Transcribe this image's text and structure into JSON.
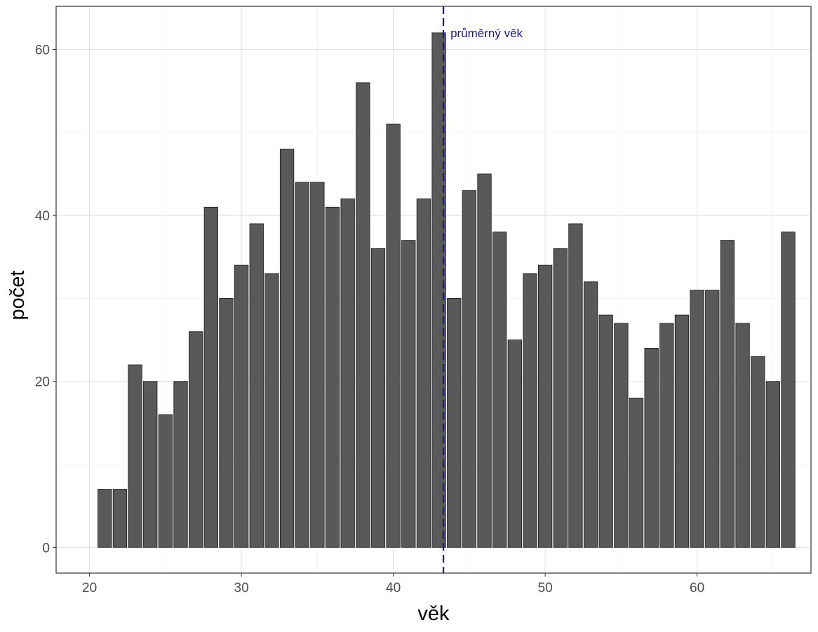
{
  "chart_data": {
    "type": "bar",
    "title": "",
    "xlabel": "věk",
    "ylabel": "počet",
    "xlim": [
      17.8,
      67.5
    ],
    "ylim": [
      -3.1,
      65.2
    ],
    "x_ticks": [
      20,
      30,
      40,
      50,
      60
    ],
    "y_ticks": [
      0,
      20,
      40,
      60
    ],
    "grid": true,
    "legend": "none",
    "colors": {
      "bar_fill": "#595959",
      "bar_stroke": "#1a1a1a",
      "grid_major": "#e0e0e0",
      "grid_minor": "#f0f0f0",
      "mean_line": "#1a1a80",
      "frame": "#333333"
    },
    "x": [
      21,
      22,
      23,
      24,
      25,
      26,
      27,
      28,
      29,
      30,
      31,
      32,
      33,
      34,
      35,
      36,
      37,
      38,
      39,
      40,
      41,
      42,
      43,
      44,
      45,
      46,
      47,
      48,
      49,
      50,
      51,
      52,
      53,
      54,
      55,
      56,
      57,
      58,
      59,
      60,
      61,
      62,
      63,
      64,
      65,
      66
    ],
    "values": [
      7,
      7,
      22,
      20,
      16,
      20,
      26,
      41,
      30,
      34,
      39,
      33,
      48,
      44,
      44,
      41,
      42,
      56,
      36,
      51,
      37,
      42,
      62,
      30,
      43,
      45,
      38,
      25,
      33,
      34,
      36,
      39,
      32,
      28,
      27,
      18,
      24,
      27,
      28,
      31,
      31,
      37,
      27,
      23,
      20,
      38
    ],
    "mean_line": {
      "value": 43.3,
      "label": "průměrný věk"
    }
  }
}
